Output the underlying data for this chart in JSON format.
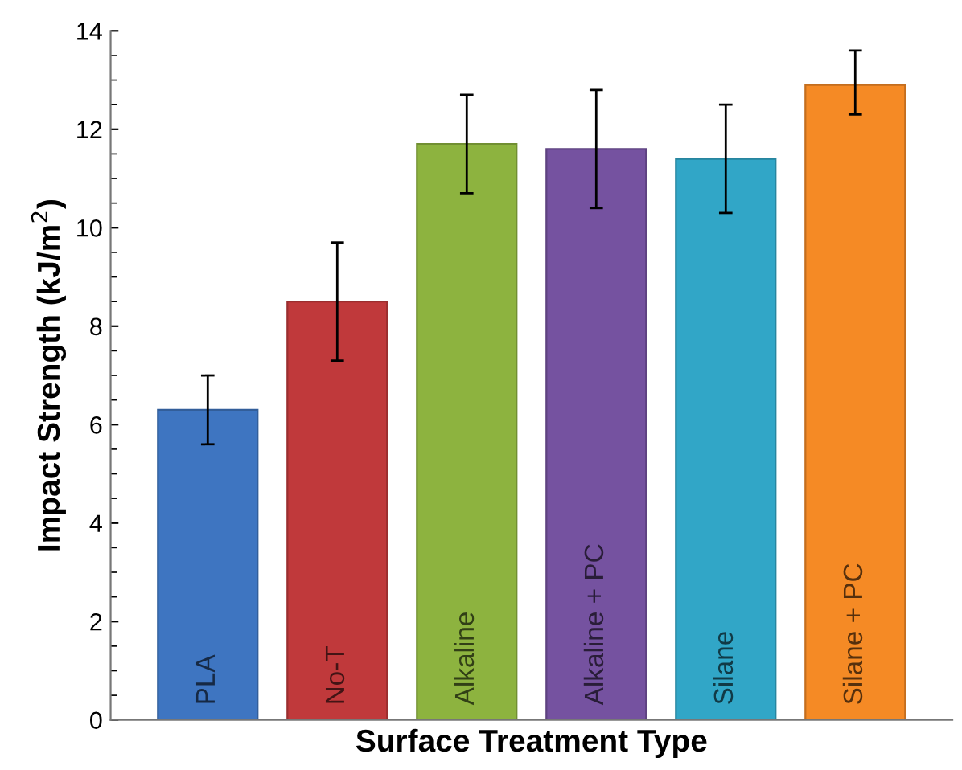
{
  "chart_data": {
    "type": "bar",
    "xlabel": "Surface Treatment Type",
    "ylabel": "Impact Strength (kJ/m$^{2}$)",
    "categories": [
      "PLA",
      "No-T",
      "Alkaline",
      "Alkaline + PC",
      "Silane",
      "Silane + PC"
    ],
    "values": [
      6.3,
      8.5,
      11.7,
      11.6,
      11.4,
      12.9
    ],
    "errors": [
      [
        5.6,
        7.0
      ],
      [
        7.3,
        9.7
      ],
      [
        10.7,
        12.7
      ],
      [
        10.4,
        12.8
      ],
      [
        10.3,
        12.5
      ],
      [
        12.3,
        13.6
      ]
    ],
    "colors": [
      "#3e75c1",
      "#c0393b",
      "#8db33f",
      "#7552a0",
      "#31a6c7",
      "#f58a25"
    ],
    "ylim": [
      0,
      14
    ],
    "yticks": [
      0,
      2,
      4,
      6,
      8,
      10,
      12,
      14
    ],
    "grid": false,
    "legend": false
  }
}
